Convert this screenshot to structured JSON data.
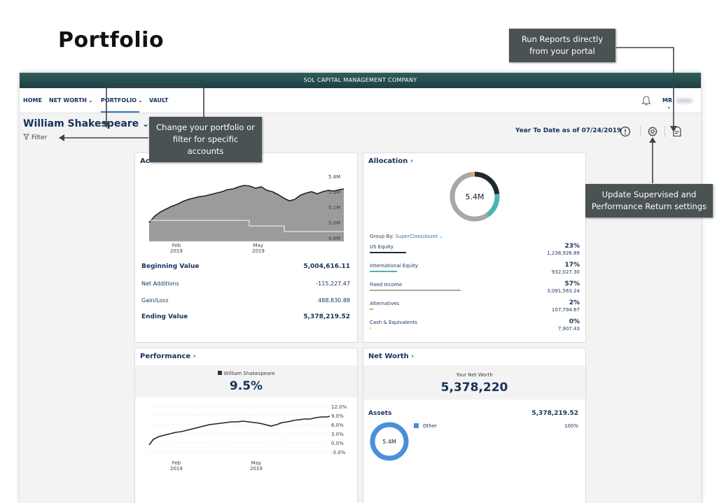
{
  "slide": {
    "title": "Portfolio"
  },
  "brand": {
    "company": "SOL CAPITAL MANAGEMENT COMPANY"
  },
  "nav": {
    "items": [
      {
        "label": "HOME"
      },
      {
        "label": "NET WORTH"
      },
      {
        "label": "PORTFOLIO"
      },
      {
        "label": "VAULT"
      }
    ],
    "user": "MR."
  },
  "header": {
    "portfolio_name": "William Shakespeare",
    "filter_label": "Filter",
    "period": "Year To Date as of 07/24/2019",
    "icons": [
      "info-icon",
      "gear-icon",
      "report-icon"
    ]
  },
  "activity": {
    "title": "Ac",
    "x_ticks": [
      {
        "label": "Feb",
        "year": "2019"
      },
      {
        "label": "May",
        "year": "2019"
      }
    ],
    "y_ticks": [
      "5.4M",
      "5.3M",
      "5.1M",
      "5.0M",
      "4.8M"
    ],
    "rows": [
      {
        "label": "Beginning Value",
        "value": "5,004,616.11",
        "bold": true
      },
      {
        "label": "Net Additions",
        "value": "-115,227.47",
        "bold": false
      },
      {
        "label": "Gain/Loss",
        "value": "488,830.88",
        "bold": false
      },
      {
        "label": "Ending Value",
        "value": "5,378,219.52",
        "bold": true
      }
    ]
  },
  "allocation": {
    "title": "Allocation",
    "center_label": "5.4M",
    "group_by_label": "Group By:",
    "group_by_value": "SuperClass/Asset",
    "rows": [
      {
        "name": "US Equity",
        "pct": "23%",
        "amount": "1,238,926.89",
        "fraction": 0.23,
        "color": "#1d2b2f"
      },
      {
        "name": "International Equity",
        "pct": "17%",
        "amount": "932,027.30",
        "fraction": 0.17,
        "color": "#4fb3b3"
      },
      {
        "name": "Fixed Income",
        "pct": "57%",
        "amount": "3,091,563.24",
        "fraction": 0.57,
        "color": "#a8a8a8"
      },
      {
        "name": "Alternatives",
        "pct": "2%",
        "amount": "107,794.67",
        "fraction": 0.02,
        "color": "#f0a34a"
      },
      {
        "name": "Cash & Equivalents",
        "pct": "0%",
        "amount": "7,907.43",
        "fraction": 0.004,
        "color": "#f2c94c"
      }
    ]
  },
  "performance": {
    "title": "Performance",
    "legend": "William Shakespeare",
    "value": "9.5%",
    "x_ticks": [
      {
        "label": "Feb",
        "year": "2019"
      },
      {
        "label": "May",
        "year": "2019"
      }
    ],
    "y_ticks": [
      "12.0%",
      "9.0%",
      "6.0%",
      "3.0%",
      "0.0%",
      "-3.0%"
    ]
  },
  "networth": {
    "title": "Net Worth",
    "subtitle": "Your Net Worth",
    "value": "5,378,220",
    "assets_label": "Assets",
    "assets_value": "5,378,219.52",
    "donut_label": "5.4M",
    "legend_item": "Other",
    "legend_pct": "100%",
    "color": "#4a8fd9"
  },
  "callouts": {
    "reports": "Run Reports directly from your portal",
    "portfolio": "Change your portfolio or filter for specific accounts",
    "settings": "Update Supervised and Performance Return settings"
  }
}
